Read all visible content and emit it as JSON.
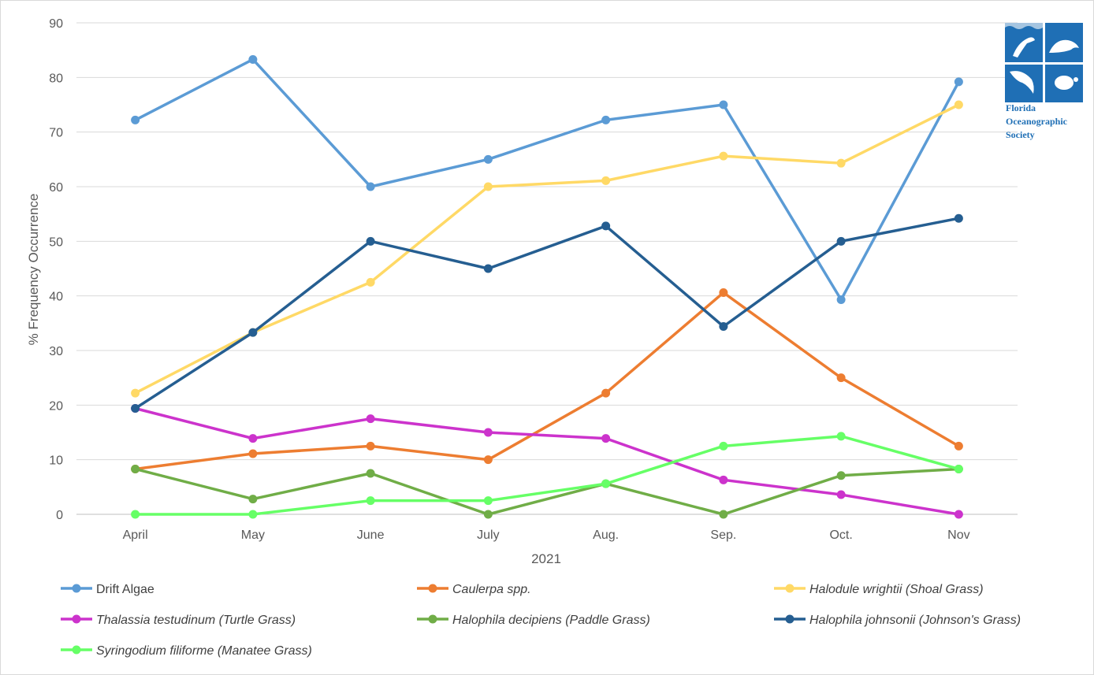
{
  "chart_data": {
    "type": "line",
    "xlabel": "2021",
    "ylabel": "% Frequency Occurrence",
    "ylim": [
      0,
      90
    ],
    "yticks": [
      0,
      10,
      20,
      30,
      40,
      50,
      60,
      70,
      80,
      90
    ],
    "grid": true,
    "legend_position": "bottom",
    "categories": [
      "April",
      "May",
      "June",
      "July",
      "Aug.",
      "Sep.",
      "Oct.",
      "Nov"
    ],
    "series": [
      {
        "name": "Drift Algae",
        "italic": false,
        "color": "#5b9bd5",
        "values": [
          72.2,
          83.3,
          60,
          65,
          72.2,
          75,
          39.3,
          79.2
        ]
      },
      {
        "name": "Caulerpa spp.",
        "italic": true,
        "color": "#ed7d31",
        "values": [
          8.3,
          11.1,
          12.5,
          10,
          22.2,
          40.6,
          25,
          12.5
        ]
      },
      {
        "name": "Halodule wrightii (Shoal Grass)",
        "italic": true,
        "color": "#ffd966",
        "values": [
          22.2,
          33.3,
          42.5,
          60,
          61.1,
          65.6,
          64.3,
          75
        ]
      },
      {
        "name": "Thalassia testudinum (Turtle Grass)",
        "italic": true,
        "color": "#cc33cc",
        "values": [
          19.4,
          13.9,
          17.5,
          15,
          13.9,
          6.3,
          3.6,
          0
        ]
      },
      {
        "name": "Halophila decipiens (Paddle Grass)",
        "italic": true,
        "color": "#70ad47",
        "values": [
          8.3,
          2.8,
          7.5,
          0,
          5.6,
          0,
          7.1,
          8.3
        ]
      },
      {
        "name": "Halophila johnsonii (Johnson's Grass)",
        "italic": true,
        "color": "#255e91",
        "values": [
          19.4,
          33.3,
          50,
          45,
          52.8,
          34.4,
          50,
          54.2
        ]
      },
      {
        "name": "Syringodium filiforme (Manatee Grass)",
        "italic": true,
        "color": "#66ff66",
        "values": [
          0,
          0,
          2.5,
          2.5,
          5.6,
          12.5,
          14.3,
          8.3
        ]
      }
    ]
  },
  "logo": {
    "line1": "Florida",
    "line2": "Oceanographic",
    "line3": "Society",
    "color": "#1f6fb5"
  }
}
